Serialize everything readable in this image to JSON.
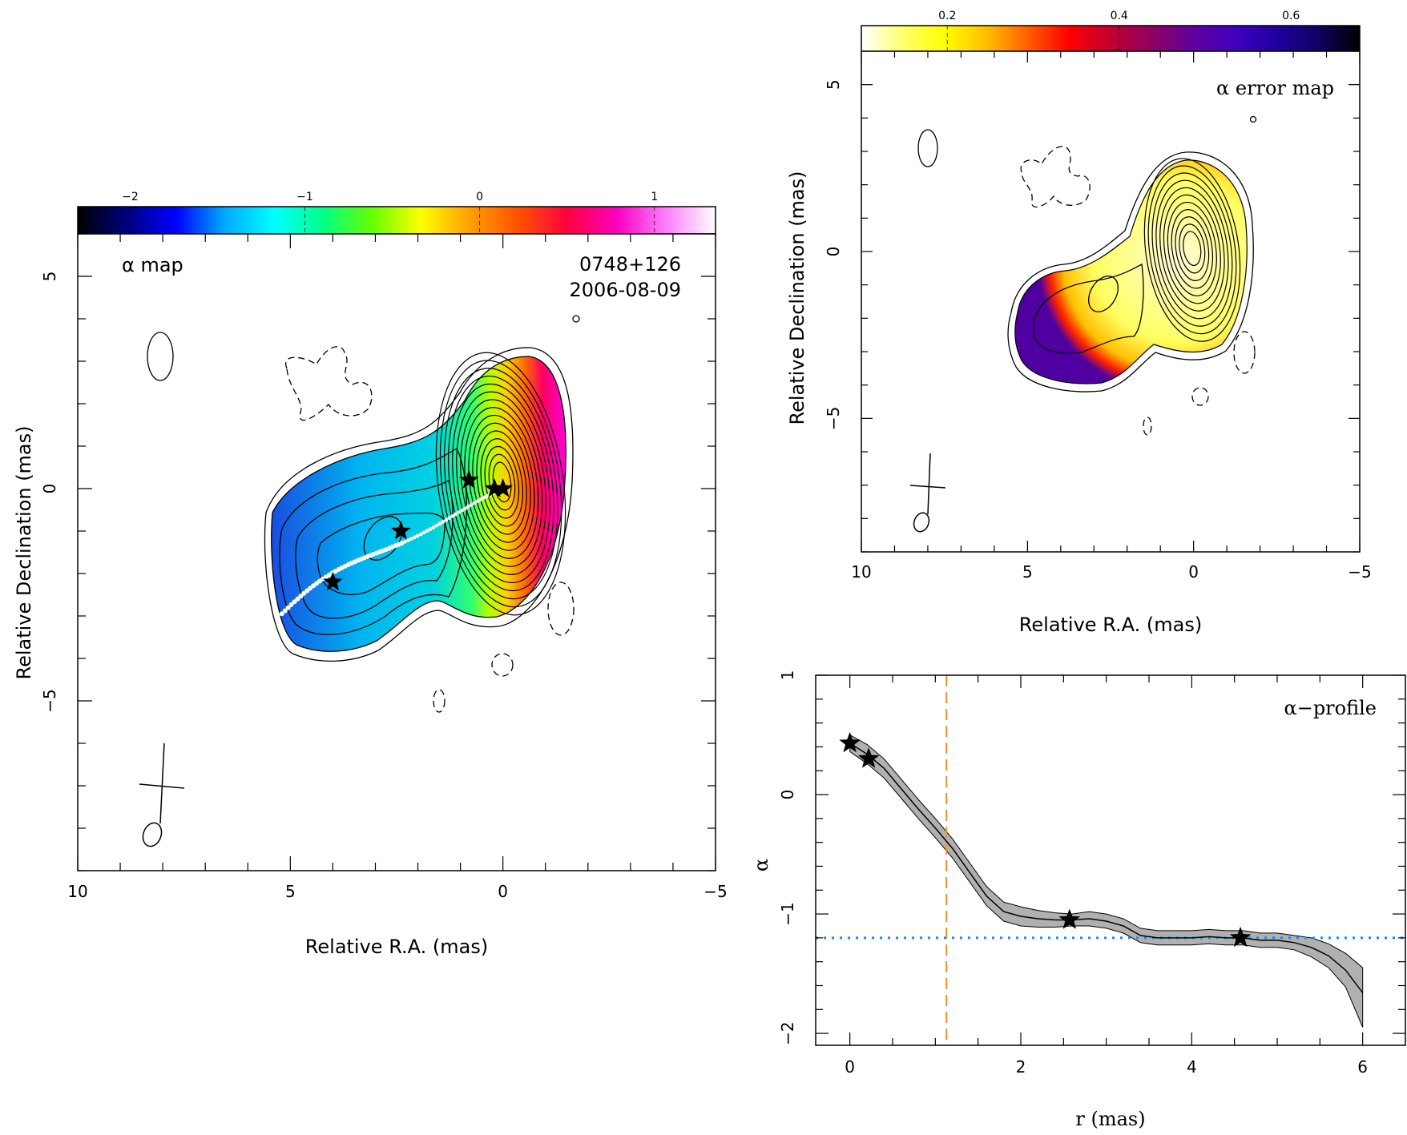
{
  "chart_data": [
    {
      "type": "heatmap",
      "panel": "alpha-map",
      "label": "α map",
      "source": "0748+126",
      "epoch": "2006-08-09",
      "xlabel": "Relative R.A. (mas)",
      "ylabel": "Relative Declination (mas)",
      "xlim": [
        10,
        -5
      ],
      "ylim": [
        -9,
        6
      ],
      "x_ticks": [
        10,
        5,
        0,
        -5
      ],
      "y_ticks": [
        5,
        0,
        -5
      ],
      "colorbar": {
        "range": [
          -2.3,
          1.35
        ],
        "ticks": [
          -2,
          -1,
          0,
          1
        ],
        "colors": [
          "#000000",
          "#000080",
          "#0000ff",
          "#00aaff",
          "#00ffff",
          "#00ff88",
          "#66ff00",
          "#ffff00",
          "#ffa000",
          "#ff5000",
          "#ff0040",
          "#ff00c0",
          "#ff80ff",
          "#ffffff"
        ]
      },
      "ridge_stars": [
        [
          0,
          0
        ],
        [
          0.2,
          0
        ],
        [
          0.8,
          0.2
        ],
        [
          2.4,
          -1.0
        ],
        [
          4.0,
          -2.2
        ]
      ],
      "core_contour_levels": 15
    },
    {
      "type": "heatmap",
      "panel": "alpha-error-map",
      "label": "α error map",
      "xlabel": "Relative R.A. (mas)",
      "ylabel": "Relative Declination (mas)",
      "xlim": [
        10,
        -5
      ],
      "ylim": [
        -9,
        6
      ],
      "x_ticks": [
        10,
        5,
        0,
        -5
      ],
      "y_ticks": [
        5,
        0,
        -5
      ],
      "colorbar": {
        "range": [
          0.1,
          0.68
        ],
        "ticks": [
          0.2,
          0.4,
          0.6
        ],
        "colors": [
          "#ffffff",
          "#ffff70",
          "#ffff00",
          "#ffc000",
          "#ff6000",
          "#ff0000",
          "#c00030",
          "#900060",
          "#6000a0",
          "#4000c0",
          "#2000a0",
          "#100060",
          "#000000"
        ]
      }
    },
    {
      "type": "line",
      "panel": "alpha-profile",
      "label": "α−profile",
      "xlabel": "r (mas)",
      "ylabel": "α",
      "xlim": [
        -0.4,
        6.5
      ],
      "ylim": [
        -2.1,
        1.0
      ],
      "x_ticks": [
        0,
        2,
        4,
        6
      ],
      "y_ticks": [
        1,
        0,
        -1,
        -2
      ],
      "x": [
        0.0,
        0.2,
        0.4,
        0.6,
        0.8,
        1.0,
        1.2,
        1.4,
        1.6,
        1.8,
        2.0,
        2.2,
        2.4,
        2.6,
        2.8,
        3.0,
        3.2,
        3.4,
        3.6,
        3.8,
        4.0,
        4.2,
        4.4,
        4.6,
        4.8,
        5.0,
        5.2,
        5.4,
        5.6,
        5.8,
        6.0
      ],
      "alpha": [
        0.43,
        0.34,
        0.22,
        0.05,
        -0.12,
        -0.28,
        -0.45,
        -0.65,
        -0.85,
        -0.98,
        -1.02,
        -1.04,
        -1.05,
        -1.05,
        -1.04,
        -1.06,
        -1.1,
        -1.18,
        -1.2,
        -1.2,
        -1.2,
        -1.19,
        -1.2,
        -1.2,
        -1.22,
        -1.22,
        -1.24,
        -1.28,
        -1.35,
        -1.47,
        -1.66
      ],
      "err_upper": [
        0.5,
        0.42,
        0.3,
        0.13,
        -0.04,
        -0.2,
        -0.37,
        -0.57,
        -0.77,
        -0.9,
        -0.94,
        -0.97,
        -0.99,
        -1.0,
        -0.98,
        -1.0,
        -1.04,
        -1.12,
        -1.14,
        -1.14,
        -1.14,
        -1.13,
        -1.14,
        -1.14,
        -1.16,
        -1.16,
        -1.18,
        -1.2,
        -1.25,
        -1.33,
        -1.45
      ],
      "err_lower": [
        0.36,
        0.26,
        0.14,
        -0.03,
        -0.2,
        -0.36,
        -0.53,
        -0.73,
        -0.93,
        -1.06,
        -1.1,
        -1.11,
        -1.11,
        -1.1,
        -1.1,
        -1.12,
        -1.16,
        -1.24,
        -1.26,
        -1.26,
        -1.26,
        -1.25,
        -1.26,
        -1.26,
        -1.28,
        -1.28,
        -1.3,
        -1.36,
        -1.45,
        -1.61,
        -1.95
      ],
      "stars": [
        [
          0.0,
          0.43
        ],
        [
          0.22,
          0.3
        ],
        [
          2.57,
          -1.05
        ],
        [
          4.57,
          -1.2
        ]
      ],
      "vline_x": 1.13,
      "hline_y": -1.2,
      "vline_color": "#e8962e",
      "hline_color": "#1e88e5",
      "band_color": "#b0b0b0"
    }
  ]
}
